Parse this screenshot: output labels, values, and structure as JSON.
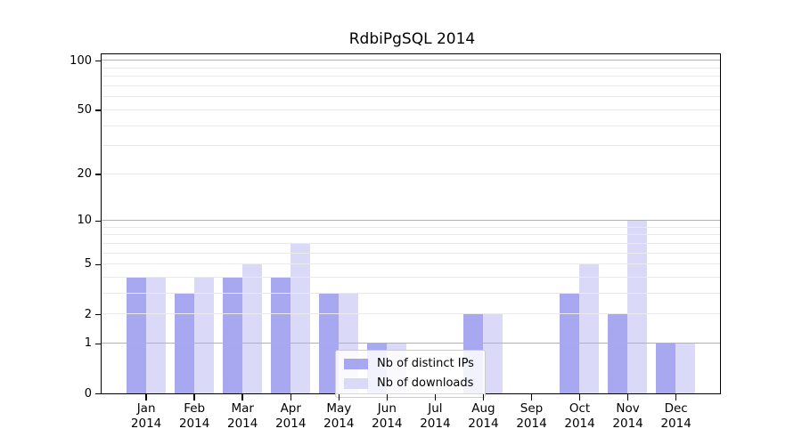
{
  "chart_data": {
    "type": "bar",
    "title": "RdbiPgSQL 2014",
    "year_label": "2014",
    "categories": [
      "Jan",
      "Feb",
      "Mar",
      "Apr",
      "May",
      "Jun",
      "Jul",
      "Aug",
      "Sep",
      "Oct",
      "Nov",
      "Dec"
    ],
    "series": [
      {
        "name": "Nb of distinct IPs",
        "color": "#8787eb",
        "opacity": 0.72,
        "values": [
          4,
          3,
          4,
          4,
          3,
          1,
          0,
          2,
          0,
          3,
          2,
          1
        ]
      },
      {
        "name": "Nb of downloads",
        "color": "#ccccf5",
        "opacity": 0.72,
        "values": [
          4,
          4,
          5,
          7,
          3,
          1,
          0,
          2,
          0,
          5,
          10,
          1
        ]
      }
    ],
    "yscale": "log1p",
    "ylim": [
      0,
      110
    ],
    "ytick_values": [
      0,
      1,
      2,
      5,
      10,
      20,
      50,
      100
    ],
    "ytick_labels": [
      "0",
      "1",
      "2",
      "5",
      "10",
      "20",
      "50",
      "100"
    ],
    "major_gridline_values": [
      1,
      10,
      100
    ],
    "minor_gridline_values": [
      2,
      3,
      4,
      5,
      6,
      7,
      8,
      9,
      20,
      30,
      40,
      50,
      60,
      70,
      80,
      90
    ],
    "grid_major_color": "#b2b2b2",
    "grid_minor_color": "#eaeaea",
    "axis_color": "#000000",
    "legend_position": "lower center",
    "legend": {
      "entries": [
        "Nb of distinct IPs",
        "Nb of downloads"
      ]
    }
  }
}
